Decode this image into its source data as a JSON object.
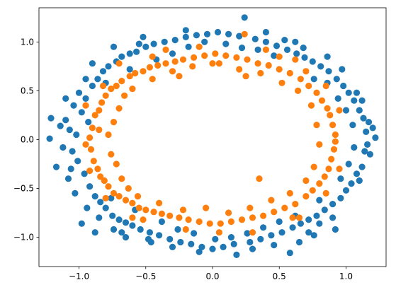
{
  "chart_data": {
    "type": "scatter",
    "title": "",
    "xlabel": "",
    "ylabel": "",
    "xlim": [
      -1.3,
      1.3
    ],
    "ylim": [
      -1.3,
      1.35
    ],
    "grid": false,
    "legend": "none",
    "x_ticks": [
      -1.0,
      -0.5,
      0.0,
      0.5,
      1.0
    ],
    "x_tick_labels": [
      "−1.0",
      "−0.5",
      "0.0",
      "0.5",
      "1.0"
    ],
    "y_ticks": [
      -1.0,
      -0.5,
      0.0,
      0.5,
      1.0
    ],
    "y_tick_labels": [
      "−1.0",
      "−0.5",
      "0.0",
      "0.5",
      "1.0"
    ],
    "series": [
      {
        "color": "#1f77b4",
        "description": "outer ring, radius about 1.0 with noise",
        "points": [
          [
            -1.21,
            0.22
          ],
          [
            -1.22,
            0.01
          ],
          [
            -1.17,
            -0.28
          ],
          [
            -1.14,
            0.14
          ],
          [
            -1.12,
            -0.08
          ],
          [
            -1.1,
            0.2
          ],
          [
            -1.07,
            0.1
          ],
          [
            -1.05,
            -0.12
          ],
          [
            -1.04,
            0.35
          ],
          [
            -1.02,
            0.05
          ],
          [
            -1.01,
            -0.22
          ],
          [
            -0.98,
            0.28
          ],
          [
            -0.96,
            -0.35
          ],
          [
            -0.95,
            0.42
          ],
          [
            -0.93,
            0.18
          ],
          [
            -0.92,
            -0.48
          ],
          [
            -0.9,
            0.55
          ],
          [
            -0.88,
            -0.58
          ],
          [
            -0.86,
            0.62
          ],
          [
            -0.84,
            -0.64
          ],
          [
            -0.82,
            0.7
          ],
          [
            -0.8,
            -0.7
          ],
          [
            -0.78,
            0.75
          ],
          [
            -0.75,
            -0.78
          ],
          [
            -0.72,
            0.8
          ],
          [
            -0.7,
            -0.82
          ],
          [
            -0.68,
            0.85
          ],
          [
            -0.65,
            -0.85
          ],
          [
            -0.62,
            0.88
          ],
          [
            -0.6,
            -0.88
          ],
          [
            -0.57,
            0.9
          ],
          [
            -0.54,
            -0.92
          ],
          [
            -0.5,
            0.95
          ],
          [
            -0.47,
            -0.95
          ],
          [
            -0.44,
            0.98
          ],
          [
            -0.4,
            -0.98
          ],
          [
            -0.36,
            1.0
          ],
          [
            -0.32,
            -1.02
          ],
          [
            -0.28,
            1.02
          ],
          [
            -0.24,
            -1.05
          ],
          [
            -0.2,
            1.05
          ],
          [
            -0.16,
            -1.07
          ],
          [
            -0.12,
            1.07
          ],
          [
            -0.08,
            -1.1
          ],
          [
            -0.04,
            1.08
          ],
          [
            0.0,
            -1.12
          ],
          [
            0.04,
            1.1
          ],
          [
            0.08,
            -1.1
          ],
          [
            0.12,
            1.08
          ],
          [
            0.16,
            -1.07
          ],
          [
            0.2,
            1.06
          ],
          [
            0.24,
            1.25
          ],
          [
            0.28,
            -1.05
          ],
          [
            0.32,
            1.03
          ],
          [
            0.36,
            -1.02
          ],
          [
            0.4,
            1.0
          ],
          [
            0.44,
            -0.98
          ],
          [
            0.48,
            0.96
          ],
          [
            0.52,
            -0.95
          ],
          [
            0.56,
            0.92
          ],
          [
            0.58,
            -1.16
          ],
          [
            0.6,
            -0.9
          ],
          [
            0.63,
            0.88
          ],
          [
            0.66,
            -0.86
          ],
          [
            0.69,
            0.84
          ],
          [
            0.72,
            -0.82
          ],
          [
            0.75,
            0.8
          ],
          [
            0.78,
            -0.78
          ],
          [
            0.81,
            0.75
          ],
          [
            0.84,
            -0.72
          ],
          [
            0.87,
            0.7
          ],
          [
            0.9,
            -0.66
          ],
          [
            0.93,
            0.62
          ],
          [
            0.96,
            -0.6
          ],
          [
            0.98,
            0.55
          ],
          [
            1.0,
            -0.52
          ],
          [
            1.02,
            0.48
          ],
          [
            1.04,
            -0.45
          ],
          [
            1.06,
            0.4
          ],
          [
            1.08,
            -0.35
          ],
          [
            1.1,
            0.3
          ],
          [
            1.12,
            -0.28
          ],
          [
            1.13,
            0.22
          ],
          [
            1.14,
            -0.12
          ],
          [
            1.15,
            0.08
          ],
          [
            1.16,
            -0.05
          ],
          [
            1.17,
            0.18
          ],
          [
            1.18,
            -0.15
          ],
          [
            1.2,
            0.12
          ],
          [
            1.22,
            0.02
          ],
          [
            -0.98,
            -0.86
          ],
          [
            -0.95,
            0.62
          ],
          [
            -0.9,
            0.78
          ],
          [
            -0.85,
            -0.8
          ],
          [
            -0.8,
            0.58
          ],
          [
            -0.76,
            -0.6
          ],
          [
            -0.74,
            0.95
          ],
          [
            -0.68,
            -0.95
          ],
          [
            -0.62,
            0.72
          ],
          [
            -0.58,
            -0.72
          ],
          [
            -0.52,
            1.05
          ],
          [
            -0.46,
            -1.05
          ],
          [
            -0.42,
            0.82
          ],
          [
            -0.38,
            -0.84
          ],
          [
            -0.3,
            0.88
          ],
          [
            -0.26,
            -0.92
          ],
          [
            -0.18,
            0.95
          ],
          [
            -0.14,
            -0.96
          ],
          [
            -0.06,
            1.0
          ],
          [
            0.02,
            -1.02
          ],
          [
            0.1,
            0.98
          ],
          [
            0.14,
            -1.0
          ],
          [
            0.22,
            0.94
          ],
          [
            0.26,
            -0.96
          ],
          [
            0.34,
            0.92
          ],
          [
            0.38,
            -0.9
          ],
          [
            0.46,
            0.86
          ],
          [
            0.5,
            -0.84
          ],
          [
            0.54,
            1.02
          ],
          [
            0.62,
            -0.78
          ],
          [
            0.68,
            0.94
          ],
          [
            0.72,
            -0.95
          ],
          [
            0.76,
            0.62
          ],
          [
            0.8,
            -0.62
          ],
          [
            0.86,
            0.58
          ],
          [
            0.9,
            -0.8
          ],
          [
            0.94,
            0.42
          ],
          [
            0.96,
            -0.4
          ],
          [
            1.0,
            0.3
          ],
          [
            1.02,
            -0.25
          ],
          [
            1.05,
            0.15
          ],
          [
            1.06,
            -0.08
          ],
          [
            0.62,
            1.0
          ],
          [
            0.4,
            1.1
          ],
          [
            -0.2,
            1.12
          ],
          [
            -0.55,
            0.98
          ],
          [
            -1.0,
            0.48
          ],
          [
            -1.08,
            -0.4
          ],
          [
            -1.03,
            -0.55
          ],
          [
            -0.94,
            -0.7
          ],
          [
            0.92,
            -0.92
          ],
          [
            0.8,
            -0.86
          ],
          [
            1.08,
            0.48
          ],
          [
            0.97,
            0.72
          ],
          [
            -0.65,
            -1.0
          ],
          [
            -0.3,
            -1.1
          ],
          [
            0.3,
            -1.12
          ],
          [
            0.65,
            -1.05
          ],
          [
            -0.88,
            -0.95
          ],
          [
            0.86,
            0.85
          ],
          [
            -0.74,
            -0.92
          ],
          [
            -0.48,
            -1.02
          ],
          [
            -0.1,
            -1.15
          ],
          [
            0.18,
            -1.18
          ],
          [
            0.46,
            -1.08
          ],
          [
            0.76,
            -0.98
          ],
          [
            1.12,
            0.4
          ],
          [
            1.1,
            -0.42
          ],
          [
            -1.1,
            0.42
          ],
          [
            -1.06,
            -0.3
          ]
        ]
      },
      {
        "color": "#ff7f0e",
        "description": "inner ring, radius about 0.8 with noise",
        "points": [
          [
            -0.92,
            0.02
          ],
          [
            -0.91,
            -0.1
          ],
          [
            -0.9,
            0.12
          ],
          [
            -0.89,
            -0.22
          ],
          [
            -0.88,
            0.25
          ],
          [
            -0.86,
            -0.3
          ],
          [
            -0.85,
            0.3
          ],
          [
            -0.84,
            -0.38
          ],
          [
            -0.83,
            0.38
          ],
          [
            -0.81,
            -0.42
          ],
          [
            -0.8,
            0.45
          ],
          [
            -0.78,
            -0.48
          ],
          [
            -0.76,
            0.52
          ],
          [
            -0.74,
            -0.55
          ],
          [
            -0.72,
            0.55
          ],
          [
            -0.7,
            -0.58
          ],
          [
            -0.68,
            0.6
          ],
          [
            -0.65,
            -0.62
          ],
          [
            -0.62,
            0.65
          ],
          [
            -0.6,
            -0.65
          ],
          [
            -0.58,
            0.68
          ],
          [
            -0.55,
            -0.7
          ],
          [
            -0.52,
            0.7
          ],
          [
            -0.5,
            -0.72
          ],
          [
            -0.47,
            0.74
          ],
          [
            -0.44,
            -0.74
          ],
          [
            -0.41,
            0.76
          ],
          [
            -0.38,
            -0.76
          ],
          [
            -0.35,
            0.78
          ],
          [
            -0.32,
            -0.78
          ],
          [
            -0.28,
            0.8
          ],
          [
            -0.25,
            -0.8
          ],
          [
            -0.22,
            0.82
          ],
          [
            -0.18,
            -0.82
          ],
          [
            -0.14,
            0.84
          ],
          [
            -0.1,
            -0.84
          ],
          [
            -0.06,
            0.86
          ],
          [
            -0.02,
            -0.86
          ],
          [
            0.02,
            0.88
          ],
          [
            0.06,
            -0.86
          ],
          [
            0.1,
            0.86
          ],
          [
            0.14,
            -0.84
          ],
          [
            0.18,
            0.84
          ],
          [
            0.22,
            -0.82
          ],
          [
            0.26,
            0.82
          ],
          [
            0.3,
            -0.8
          ],
          [
            0.34,
            0.78
          ],
          [
            0.38,
            -0.78
          ],
          [
            0.42,
            0.76
          ],
          [
            0.46,
            -0.74
          ],
          [
            0.5,
            0.72
          ],
          [
            0.54,
            -0.7
          ],
          [
            0.58,
            0.68
          ],
          [
            0.62,
            -0.66
          ],
          [
            0.66,
            0.62
          ],
          [
            0.7,
            -0.58
          ],
          [
            0.72,
            0.55
          ],
          [
            0.75,
            -0.52
          ],
          [
            0.78,
            0.48
          ],
          [
            0.8,
            -0.45
          ],
          [
            0.82,
            0.4
          ],
          [
            0.84,
            -0.38
          ],
          [
            0.86,
            0.32
          ],
          [
            0.87,
            -0.3
          ],
          [
            0.88,
            0.25
          ],
          [
            0.89,
            -0.2
          ],
          [
            0.9,
            0.15
          ],
          [
            0.91,
            -0.1
          ],
          [
            0.92,
            0.05
          ],
          [
            0.92,
            -0.02
          ],
          [
            -0.78,
            0.05
          ],
          [
            -0.76,
            -0.15
          ],
          [
            -0.74,
            0.18
          ],
          [
            -0.72,
            -0.25
          ],
          [
            -0.7,
            0.32
          ],
          [
            -0.68,
            -0.4
          ],
          [
            -0.66,
            0.45
          ],
          [
            -0.63,
            -0.5
          ],
          [
            -0.6,
            0.52
          ],
          [
            -0.56,
            -0.58
          ],
          [
            -0.45,
            0.62
          ],
          [
            -0.4,
            -0.65
          ],
          [
            -0.3,
            0.7
          ],
          [
            -0.22,
            -0.72
          ],
          [
            -0.15,
            0.75
          ],
          [
            -0.05,
            -0.7
          ],
          [
            0.05,
            0.78
          ],
          [
            0.12,
            -0.75
          ],
          [
            0.2,
            0.72
          ],
          [
            0.28,
            -0.7
          ],
          [
            0.36,
            0.68
          ],
          [
            0.44,
            -0.62
          ],
          [
            0.52,
            0.58
          ],
          [
            0.58,
            -0.55
          ],
          [
            0.64,
            0.5
          ],
          [
            0.7,
            -0.42
          ],
          [
            0.74,
            0.35
          ],
          [
            0.76,
            -0.28
          ],
          [
            0.78,
            0.15
          ],
          [
            0.8,
            -0.05
          ],
          [
            0.62,
            0.82
          ],
          [
            -0.1,
            0.95
          ],
          [
            0.24,
            1.08
          ],
          [
            -0.35,
            0.92
          ],
          [
            0.4,
            0.92
          ],
          [
            -0.6,
            -0.8
          ],
          [
            0.3,
            -0.95
          ],
          [
            -0.2,
            -0.92
          ],
          [
            0.05,
            -0.95
          ],
          [
            0.6,
            -0.8
          ],
          [
            -0.95,
            -0.05
          ],
          [
            -0.95,
            0.35
          ],
          [
            -0.92,
            -0.32
          ],
          [
            0.95,
            0.3
          ],
          [
            0.95,
            -0.3
          ],
          [
            0.85,
            0.55
          ],
          [
            0.85,
            -0.55
          ],
          [
            -0.82,
            0.55
          ],
          [
            -0.8,
            -0.6
          ],
          [
            0.7,
            0.7
          ],
          [
            0.35,
            -0.4
          ],
          [
            0.65,
            -0.8
          ],
          [
            -0.52,
            -0.82
          ],
          [
            -0.7,
            0.78
          ],
          [
            0.5,
            0.85
          ],
          [
            -0.45,
            0.85
          ],
          [
            0.0,
            0.78
          ],
          [
            -0.25,
            0.65
          ],
          [
            0.25,
            0.65
          ],
          [
            -0.85,
            0.1
          ]
        ]
      }
    ]
  }
}
